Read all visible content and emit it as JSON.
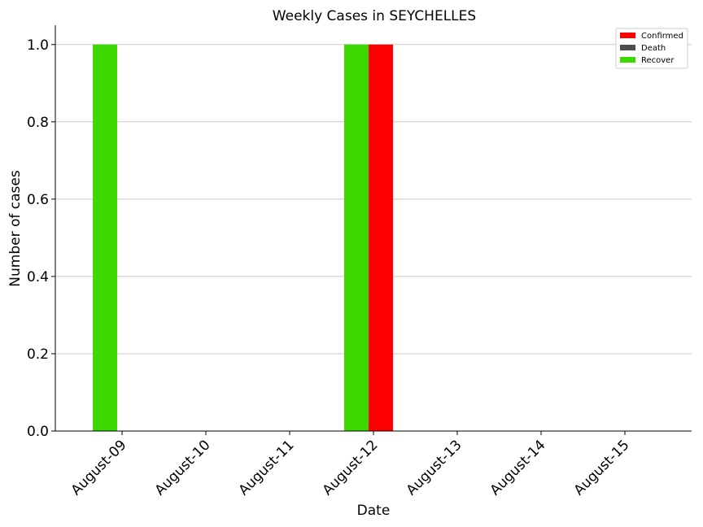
{
  "chart_data": {
    "type": "bar",
    "title": "Weekly Cases in SEYCHELLES",
    "xlabel": "Date",
    "ylabel": "Number of cases",
    "categories": [
      "August-09",
      "August-10",
      "August-11",
      "August-12",
      "August-13",
      "August-14",
      "August-15"
    ],
    "series": [
      {
        "name": "Confirmed",
        "color": "#ff0000",
        "values": [
          0,
          0,
          0,
          1,
          0,
          0,
          0
        ]
      },
      {
        "name": "Death",
        "color": "#4d4d4d",
        "values": [
          0,
          0,
          0,
          0,
          0,
          0,
          0
        ]
      },
      {
        "name": "Recover",
        "color": "#3cd800",
        "values": [
          1,
          0,
          0,
          1,
          0,
          0,
          0
        ]
      }
    ],
    "ylim": [
      0,
      1.05
    ],
    "yticks": [
      "0.0",
      "0.2",
      "0.4",
      "0.6",
      "0.8",
      "1.0"
    ],
    "grid": "horizontal",
    "legend": "top-right"
  }
}
